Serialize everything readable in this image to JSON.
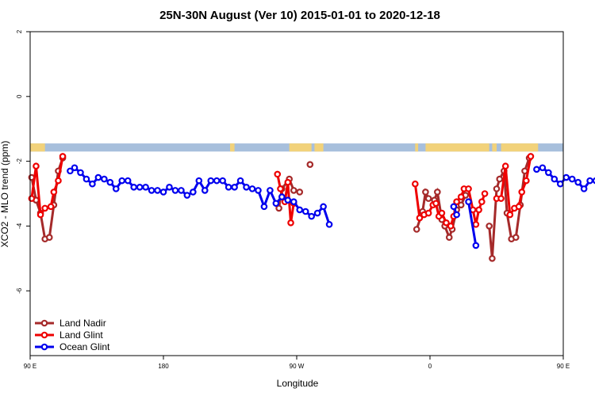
{
  "chart_data": {
    "type": "line",
    "title": "25N-30N August (Ver 10)   2015-01-01 to 2020-12-18",
    "xlabel": "Longitude",
    "ylabel": "XCO2 - MLO trend (ppm)",
    "xlim": [
      90,
      450
    ],
    "ylim": [
      -8,
      2
    ],
    "x_ticks": [
      {
        "value": 90,
        "label": "90 E"
      },
      {
        "value": 180,
        "label": "180"
      },
      {
        "value": 270,
        "label": "90 W"
      },
      {
        "value": 360,
        "label": "0"
      },
      {
        "value": 450,
        "label": "90 E"
      },
      {
        "value": 540,
        "label": "180"
      }
    ],
    "y_ticks": [
      {
        "value": 2,
        "label": "2"
      },
      {
        "value": 0,
        "label": "0"
      },
      {
        "value": -2,
        "label": "-2"
      },
      {
        "value": -4,
        "label": "-4"
      },
      {
        "value": -6,
        "label": "-6"
      }
    ],
    "land_ocean_band": {
      "y_range": [
        -1.7,
        -1.45
      ],
      "land_color": "#f2d27a",
      "ocean_color": "#a7bfdc",
      "land_segments": [
        [
          90,
          100
        ],
        [
          225,
          228
        ],
        [
          265,
          280
        ],
        [
          282,
          288
        ],
        [
          350,
          352
        ],
        [
          357,
          400
        ],
        [
          402,
          405
        ],
        [
          408,
          433
        ]
      ]
    },
    "legend": {
      "position": "bottom-left",
      "entries": [
        "Land Nadir",
        "Land Glint",
        "Ocean Glint"
      ]
    },
    "series": [
      {
        "name": "Land Nadir",
        "color": "#a52a2a",
        "segments": [
          [
            [
              91,
              -2.5
            ],
            [
              94,
              -3.2
            ],
            [
              97,
              -3.6
            ],
            [
              100,
              -4.4
            ],
            [
              103,
              -4.35
            ],
            [
              106,
              -3.35
            ],
            [
              109,
              -2.3
            ],
            [
              112,
              -1.9
            ]
          ],
          [
            [
              258,
              -3.45
            ],
            [
              260,
              -2.85
            ],
            [
              265,
              -2.55
            ],
            [
              268,
              -2.9
            ],
            [
              272,
              -2.95
            ]
          ],
          [
            [
              279,
              -2.1
            ]
          ],
          [
            [
              351,
              -4.1
            ],
            [
              355,
              -3.55
            ],
            [
              357,
              -2.95
            ],
            [
              359,
              -3.15
            ],
            [
              363,
              -3.2
            ],
            [
              365,
              -2.95
            ],
            [
              368,
              -3.8
            ],
            [
              370,
              -4.0
            ],
            [
              373,
              -4.35
            ],
            [
              375,
              -4.1
            ],
            [
              378,
              -3.5
            ],
            [
              381,
              -3.35
            ],
            [
              384,
              -3.05
            ]
          ],
          [
            [
              400,
              -4.0
            ],
            [
              402,
              -5.0
            ],
            [
              405,
              -2.85
            ],
            [
              407,
              -2.55
            ],
            [
              410,
              -2.3
            ],
            [
              412,
              -3.6
            ],
            [
              415,
              -4.4
            ],
            [
              418,
              -4.35
            ],
            [
              421,
              -3.35
            ],
            [
              424,
              -2.3
            ],
            [
              427,
              -1.9
            ]
          ]
        ]
      },
      {
        "name": "Land Glint",
        "color": "#ee0000",
        "segments": [
          [
            [
              91,
              -3.15
            ],
            [
              94,
              -2.15
            ],
            [
              97,
              -3.65
            ],
            [
              100,
              -3.45
            ],
            [
              104,
              -3.4
            ],
            [
              106,
              -2.95
            ],
            [
              109,
              -2.6
            ],
            [
              112,
              -1.85
            ]
          ],
          [
            [
              257,
              -2.4
            ],
            [
              259,
              -2.85
            ],
            [
              262,
              -3.25
            ],
            [
              264,
              -2.65
            ],
            [
              266,
              -3.9
            ],
            [
              268,
              -3.3
            ]
          ],
          [
            [
              350,
              -2.7
            ],
            [
              353,
              -3.75
            ],
            [
              356,
              -3.65
            ],
            [
              359,
              -3.6
            ],
            [
              362,
              -3.35
            ],
            [
              364,
              -3.3
            ],
            [
              366,
              -3.7
            ],
            [
              368,
              -3.6
            ],
            [
              371,
              -3.9
            ],
            [
              374,
              -4.0
            ],
            [
              376,
              -3.7
            ],
            [
              378,
              -3.25
            ],
            [
              381,
              -3.1
            ],
            [
              383,
              -2.85
            ],
            [
              386,
              -2.85
            ],
            [
              389,
              -3.5
            ],
            [
              391,
              -3.95
            ],
            [
              393,
              -3.5
            ],
            [
              395,
              -3.25
            ],
            [
              397,
              -3.0
            ]
          ],
          [
            [
              405,
              -3.15
            ],
            [
              408,
              -3.15
            ],
            [
              411,
              -2.15
            ],
            [
              414,
              -3.65
            ],
            [
              417,
              -3.45
            ],
            [
              420,
              -3.4
            ],
            [
              422,
              -2.95
            ],
            [
              425,
              -2.6
            ],
            [
              428,
              -1.85
            ]
          ]
        ]
      },
      {
        "name": "Ocean Glint",
        "color": "#0000ee",
        "segments": [
          [
            [
              117,
              -2.3
            ],
            [
              120,
              -2.2
            ],
            [
              124,
              -2.35
            ],
            [
              128,
              -2.55
            ],
            [
              132,
              -2.7
            ],
            [
              136,
              -2.5
            ],
            [
              140,
              -2.55
            ],
            [
              144,
              -2.65
            ],
            [
              148,
              -2.85
            ],
            [
              152,
              -2.6
            ],
            [
              156,
              -2.6
            ],
            [
              160,
              -2.8
            ],
            [
              164,
              -2.8
            ],
            [
              168,
              -2.8
            ],
            [
              172,
              -2.9
            ],
            [
              176,
              -2.9
            ],
            [
              180,
              -2.95
            ],
            [
              184,
              -2.8
            ],
            [
              188,
              -2.9
            ],
            [
              192,
              -2.9
            ],
            [
              196,
              -3.05
            ],
            [
              200,
              -2.95
            ],
            [
              204,
              -2.6
            ],
            [
              208,
              -2.9
            ],
            [
              212,
              -2.6
            ],
            [
              216,
              -2.6
            ],
            [
              220,
              -2.6
            ],
            [
              224,
              -2.8
            ],
            [
              228,
              -2.8
            ],
            [
              232,
              -2.6
            ],
            [
              236,
              -2.8
            ],
            [
              240,
              -2.85
            ],
            [
              244,
              -2.9
            ],
            [
              248,
              -3.4
            ],
            [
              252,
              -2.9
            ],
            [
              256,
              -3.3
            ],
            [
              260,
              -3.1
            ],
            [
              264,
              -3.2
            ],
            [
              268,
              -3.25
            ],
            [
              272,
              -3.5
            ],
            [
              276,
              -3.55
            ],
            [
              280,
              -3.7
            ],
            [
              284,
              -3.6
            ],
            [
              288,
              -3.4
            ],
            [
              292,
              -3.95
            ]
          ],
          [
            [
              376,
              -3.4
            ],
            [
              378,
              -3.65
            ]
          ],
          [
            [
              386,
              -3.25
            ],
            [
              391,
              -4.6
            ]
          ],
          [
            [
              432,
              -2.25
            ],
            [
              436,
              -2.2
            ],
            [
              440,
              -2.35
            ],
            [
              444,
              -2.55
            ],
            [
              448,
              -2.7
            ],
            [
              452,
              -2.5
            ],
            [
              456,
              -2.55
            ],
            [
              460,
              -2.65
            ],
            [
              464,
              -2.85
            ],
            [
              468,
              -2.6
            ],
            [
              472,
              -2.6
            ],
            [
              476,
              -2.8
            ]
          ]
        ]
      }
    ]
  }
}
